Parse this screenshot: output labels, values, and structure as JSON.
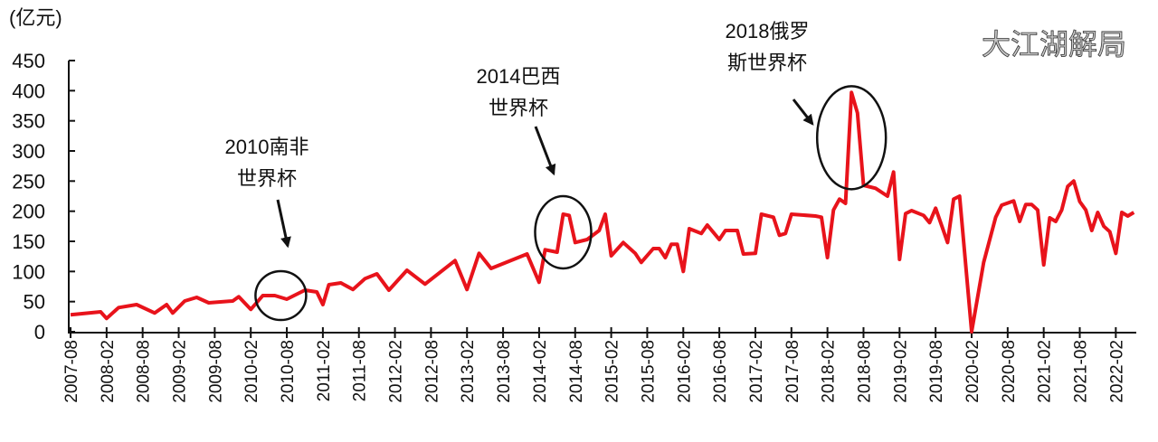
{
  "chart_data": {
    "type": "line",
    "title": "",
    "ylabel": "(亿元)",
    "xlabel": "",
    "ylim": [
      0,
      450
    ],
    "yticks": [
      "0",
      "50",
      "100",
      "150",
      "200",
      "250",
      "300",
      "350",
      "400",
      "450"
    ],
    "xticks": [
      "2007-08",
      "2008-02",
      "2008-08",
      "2009-02",
      "2009-08",
      "2010-02",
      "2010-08",
      "2011-02",
      "2011-08",
      "2012-02",
      "2012-08",
      "2013-02",
      "2013-08",
      "2014-02",
      "2014-08",
      "2015-02",
      "2015-08",
      "2016-02",
      "2016-08",
      "2017-02",
      "2017-08",
      "2018-02",
      "2018-08",
      "2019-02",
      "2019-08",
      "2020-02",
      "2020-08",
      "2021-02",
      "2021-08",
      "2022-02"
    ],
    "grid": false,
    "legend": "none",
    "line_color": "#e8131b",
    "points": [
      [
        "2007-08",
        28
      ],
      [
        "2008-01",
        33
      ],
      [
        "2008-02",
        22
      ],
      [
        "2008-04",
        40
      ],
      [
        "2008-07",
        45
      ],
      [
        "2008-10",
        31
      ],
      [
        "2008-12",
        45
      ],
      [
        "2009-01",
        31
      ],
      [
        "2009-03",
        51
      ],
      [
        "2009-05",
        57
      ],
      [
        "2009-07",
        48
      ],
      [
        "2009-11",
        51
      ],
      [
        "2009-12",
        58
      ],
      [
        "2010-02",
        37
      ],
      [
        "2010-04",
        60
      ],
      [
        "2010-06",
        60
      ],
      [
        "2010-08",
        54
      ],
      [
        "2010-11",
        69
      ],
      [
        "2011-01",
        66
      ],
      [
        "2011-02",
        45
      ],
      [
        "2011-03",
        78
      ],
      [
        "2011-05",
        81
      ],
      [
        "2011-07",
        70
      ],
      [
        "2011-09",
        88
      ],
      [
        "2011-11",
        96
      ],
      [
        "2012-01",
        69
      ],
      [
        "2012-04",
        102
      ],
      [
        "2012-07",
        79
      ],
      [
        "2012-12",
        118
      ],
      [
        "2013-02",
        70
      ],
      [
        "2013-04",
        130
      ],
      [
        "2013-06",
        105
      ],
      [
        "2013-12",
        129
      ],
      [
        "2014-02",
        82
      ],
      [
        "2014-03",
        136
      ],
      [
        "2014-05",
        132
      ],
      [
        "2014-06",
        195
      ],
      [
        "2014-07",
        193
      ],
      [
        "2014-08",
        148
      ],
      [
        "2014-10",
        153
      ],
      [
        "2014-12",
        168
      ],
      [
        "2015-01",
        195
      ],
      [
        "2015-02",
        126
      ],
      [
        "2015-04",
        148
      ],
      [
        "2015-06",
        130
      ],
      [
        "2015-07",
        115
      ],
      [
        "2015-09",
        138
      ],
      [
        "2015-10",
        138
      ],
      [
        "2015-11",
        123
      ],
      [
        "2015-12",
        145
      ],
      [
        "2016-01",
        145
      ],
      [
        "2016-02",
        100
      ],
      [
        "2016-03",
        171
      ],
      [
        "2016-05",
        163
      ],
      [
        "2016-06",
        177
      ],
      [
        "2016-08",
        153
      ],
      [
        "2016-09",
        168
      ],
      [
        "2016-11",
        168
      ],
      [
        "2016-12",
        129
      ],
      [
        "2017-02",
        130
      ],
      [
        "2017-03",
        195
      ],
      [
        "2017-05",
        190
      ],
      [
        "2017-06",
        160
      ],
      [
        "2017-07",
        163
      ],
      [
        "2017-08",
        195
      ],
      [
        "2017-12",
        192
      ],
      [
        "2018-01",
        190
      ],
      [
        "2018-02",
        123
      ],
      [
        "2018-03",
        202
      ],
      [
        "2018-04",
        220
      ],
      [
        "2018-05",
        213
      ],
      [
        "2018-06",
        397
      ],
      [
        "2018-07",
        363
      ],
      [
        "2018-08",
        243
      ],
      [
        "2018-10",
        238
      ],
      [
        "2018-12",
        225
      ],
      [
        "2019-01",
        265
      ],
      [
        "2019-02",
        120
      ],
      [
        "2019-03",
        196
      ],
      [
        "2019-04",
        201
      ],
      [
        "2019-06",
        193
      ],
      [
        "2019-07",
        181
      ],
      [
        "2019-08",
        205
      ],
      [
        "2019-10",
        148
      ],
      [
        "2019-11",
        220
      ],
      [
        "2019-12",
        225
      ],
      [
        "2020-02",
        0
      ],
      [
        "2020-04",
        115
      ],
      [
        "2020-06",
        190
      ],
      [
        "2020-07",
        210
      ],
      [
        "2020-09",
        217
      ],
      [
        "2020-10",
        183
      ],
      [
        "2020-11",
        211
      ],
      [
        "2020-12",
        211
      ],
      [
        "2021-01",
        202
      ],
      [
        "2021-02",
        111
      ],
      [
        "2021-03",
        189
      ],
      [
        "2021-04",
        183
      ],
      [
        "2021-05",
        202
      ],
      [
        "2021-06",
        241
      ],
      [
        "2021-07",
        250
      ],
      [
        "2021-08",
        216
      ],
      [
        "2021-09",
        202
      ],
      [
        "2021-10",
        168
      ],
      [
        "2021-11",
        198
      ],
      [
        "2021-12",
        175
      ],
      [
        "2022-01",
        166
      ],
      [
        "2022-02",
        130
      ],
      [
        "2022-03",
        198
      ],
      [
        "2022-04",
        192
      ],
      [
        "2022-05",
        198
      ]
    ],
    "annotations": [
      {
        "lines": [
          "2010南非",
          "世界杯"
        ],
        "date": "2010-07",
        "value": 60
      },
      {
        "lines": [
          "2014巴西",
          "世界杯"
        ],
        "date": "2014-06",
        "value": 165
      },
      {
        "lines": [
          "2018俄罗",
          "斯世界杯"
        ],
        "date": "2018-06",
        "value": 322
      }
    ]
  },
  "watermark": "大江湖解局"
}
